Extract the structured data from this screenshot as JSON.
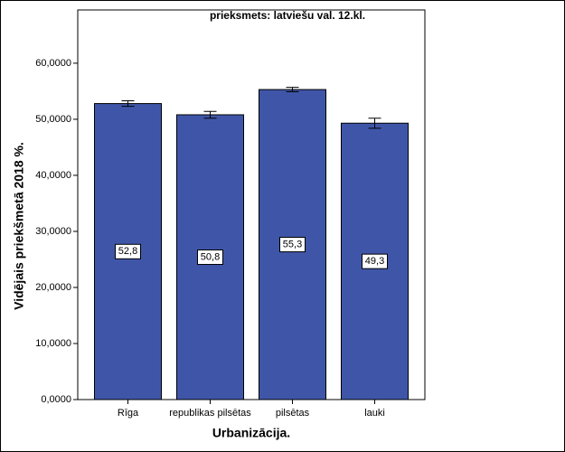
{
  "chart_data": {
    "type": "bar",
    "title": "prieksmets: latviešu val. 12.kl.",
    "x_label": "Urbanizācija.",
    "y_label": "Vidējais priekšmetā 2018 %.",
    "categories": [
      "Rīga",
      "republikas pilsētas",
      "pilsētas",
      "lauki"
    ],
    "values": [
      52.8,
      50.8,
      55.3,
      49.3
    ],
    "value_labels": [
      "52,8",
      "50,8",
      "55,3",
      "49,3"
    ],
    "errors": [
      0.5,
      0.6,
      0.4,
      0.9
    ],
    "color": "#3f56a8",
    "ylim": [
      0,
      69.5
    ],
    "yticks": [
      {
        "value": 0,
        "label": "0,0000"
      },
      {
        "value": 10,
        "label": "10,0000"
      },
      {
        "value": 20,
        "label": "20,0000"
      },
      {
        "value": 30,
        "label": "30,0000"
      },
      {
        "value": 40,
        "label": "40,0000"
      },
      {
        "value": 50,
        "label": "50,0000"
      },
      {
        "value": 60,
        "label": "60,0000"
      }
    ]
  }
}
